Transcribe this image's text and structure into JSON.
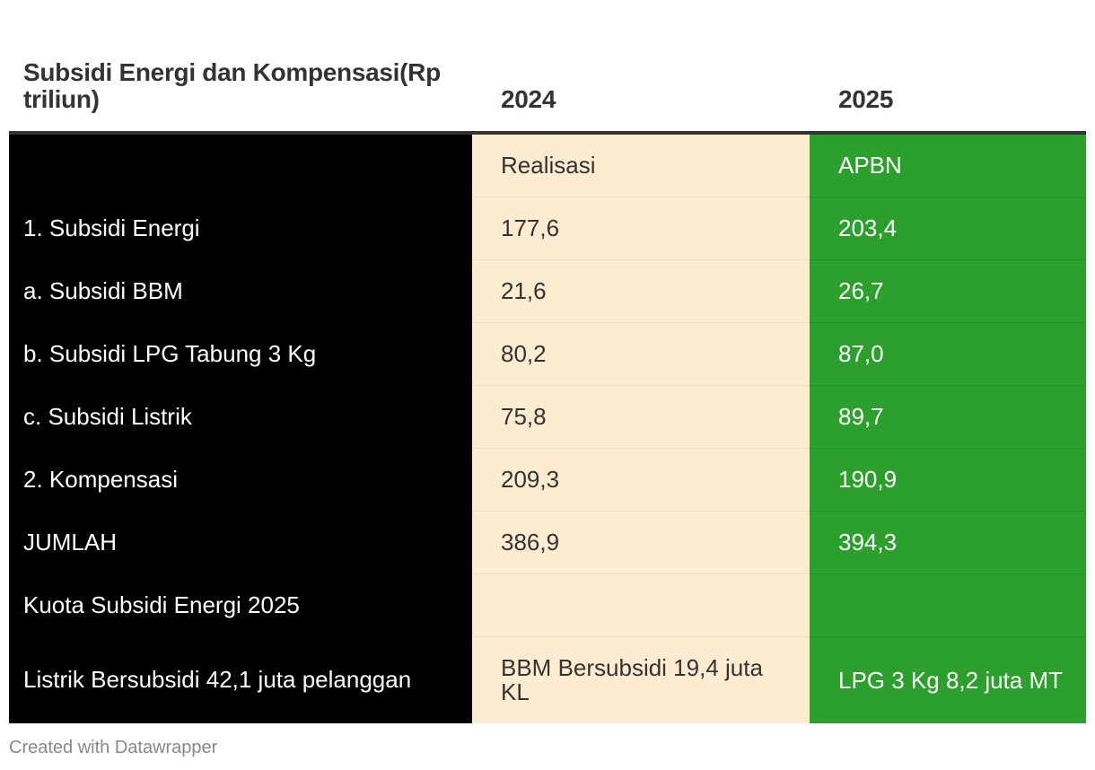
{
  "chart_data": {
    "type": "table",
    "header": {
      "col1": "Subsidi Energi dan Kompensasi(Rp triliun)",
      "col2": "2024",
      "col3": "2025"
    },
    "rows": [
      {
        "label": "",
        "v2024": "Realisasi",
        "v2025": "APBN"
      },
      {
        "label": "1. Subsidi Energi",
        "v2024": "177,6",
        "v2025": "203,4"
      },
      {
        "label": "a. Subsidi BBM",
        "v2024": "21,6",
        "v2025": "26,7"
      },
      {
        "label": "b. Subsidi LPG Tabung 3 Kg",
        "v2024": "80,2",
        "v2025": "87,0"
      },
      {
        "label": "c. Subsidi Listrik",
        "v2024": "75,8",
        "v2025": "89,7"
      },
      {
        "label": "2. Kompensasi",
        "v2024": "209,3",
        "v2025": "190,9"
      },
      {
        "label": "JUMLAH",
        "v2024": "386,9",
        "v2025": "394,3"
      },
      {
        "label": "Kuota Subsidi Energi 2025",
        "v2024": "",
        "v2025": ""
      },
      {
        "label": "Listrik Bersubsidi 42,1 juta pelanggan",
        "v2024": "BBM Bersubsidi 19,4 juta KL",
        "v2025": "LPG 3 Kg 8,2 juta MT"
      }
    ],
    "colors": {
      "col1_bg": "#000000",
      "col2_bg": "#feecd0",
      "col3_bg": "#2ca02c"
    }
  },
  "footer": {
    "credit": "Created with Datawrapper"
  }
}
